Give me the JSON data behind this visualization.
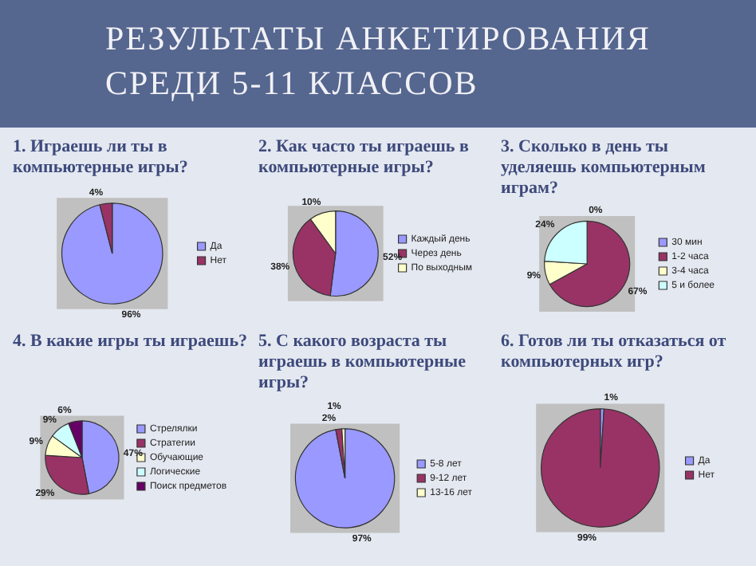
{
  "chart_data": [
    {
      "type": "pie",
      "title": "1.  Играешь ли ты в компьютерные игры?",
      "annotations": [
        "РЕЗУЛЬТАТЫ АНКЕТИРОВАНИЯ СРЕДИ 5-11 КЛАССОВ"
      ],
      "categories": [
        "Да",
        "Нет"
      ],
      "values": [
        96,
        4
      ],
      "colors": [
        "#9999ff",
        "#993366"
      ],
      "value_labels": [
        "96%",
        "4%"
      ],
      "legend": "right"
    },
    {
      "type": "pie",
      "title": "2.  Как часто ты играешь в компьютерные игры?",
      "categories": [
        "Каждый день",
        "Через день",
        "По выходным"
      ],
      "values": [
        52,
        38,
        10
      ],
      "colors": [
        "#9999ff",
        "#993366",
        "#ffffcc"
      ],
      "value_labels": [
        "52%",
        "38%",
        "10%"
      ],
      "legend": "right"
    },
    {
      "type": "pie",
      "title": "3.  Сколько в день ты уделяешь компьютерным играм?",
      "categories": [
        "30 мин",
        "1-2 часа",
        "3-4 часа",
        "5 и более"
      ],
      "values": [
        0,
        67,
        9,
        24
      ],
      "colors": [
        "#9999ff",
        "#993366",
        "#ffffcc",
        "#ccffff"
      ],
      "value_labels": [
        "0%",
        "67%",
        "9%",
        "24%"
      ],
      "legend": "right"
    },
    {
      "type": "pie",
      "title": "4.  В какие игры ты играешь?",
      "categories": [
        "Стрелялки",
        "Стратегии",
        "Обучающие",
        "Логические",
        "Поиск предметов"
      ],
      "values": [
        47,
        29,
        9,
        9,
        6
      ],
      "colors": [
        "#9999ff",
        "#993366",
        "#ffffcc",
        "#ccffff",
        "#660066"
      ],
      "value_labels": [
        "47%",
        "29%",
        "9%",
        "9%",
        "6%"
      ],
      "legend": "right"
    },
    {
      "type": "pie",
      "title": "5.  С какого возраста ты играешь в компьютерные игры?",
      "categories": [
        "5-8 лет",
        "9-12 лет",
        "13-16 лет"
      ],
      "values": [
        97,
        2,
        1
      ],
      "colors": [
        "#9999ff",
        "#993366",
        "#ffffcc"
      ],
      "value_labels": [
        "97%",
        "2%",
        "1%"
      ],
      "legend": "right"
    },
    {
      "type": "pie",
      "title": "6.  Готов ли ты отказаться от компьютерных игр?",
      "categories": [
        "Да",
        "Нет"
      ],
      "values": [
        1,
        99
      ],
      "colors": [
        "#9999ff",
        "#993366"
      ],
      "value_labels": [
        "1%",
        "99%"
      ],
      "legend": "right"
    }
  ]
}
